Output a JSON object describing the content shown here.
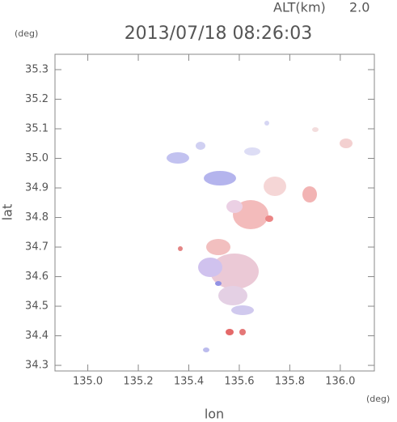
{
  "chart_data": {
    "type": "map",
    "title": "2013/07/18 08:26:03",
    "altitude_label": "ALT(km)",
    "altitude_value": "2.0",
    "xlabel": "lon",
    "ylabel": "lat",
    "xunit": "(deg)",
    "yunit": "(deg)",
    "xlim": [
      134.87,
      136.135
    ],
    "ylim": [
      34.281,
      35.352
    ],
    "xticks": [
      {
        "value": 135.0,
        "label": "135.0"
      },
      {
        "value": 135.2,
        "label": "135.2"
      },
      {
        "value": 135.4,
        "label": "135.4"
      },
      {
        "value": 135.6,
        "label": "135.6"
      },
      {
        "value": 135.8,
        "label": "135.8"
      },
      {
        "value": 136.0,
        "label": "136.0"
      }
    ],
    "yticks": [
      {
        "value": 34.3,
        "label": "34.3"
      },
      {
        "value": 34.4,
        "label": "34.4"
      },
      {
        "value": 34.5,
        "label": "34.5"
      },
      {
        "value": 34.6,
        "label": "34.6"
      },
      {
        "value": 34.7,
        "label": "34.7"
      },
      {
        "value": 34.8,
        "label": "34.8"
      },
      {
        "value": 34.9,
        "label": "34.9"
      },
      {
        "value": 35.0,
        "label": "35.0"
      },
      {
        "value": 35.1,
        "label": "35.1"
      },
      {
        "value": 35.2,
        "label": "35.2"
      },
      {
        "value": 35.3,
        "label": "35.3"
      }
    ]
  }
}
